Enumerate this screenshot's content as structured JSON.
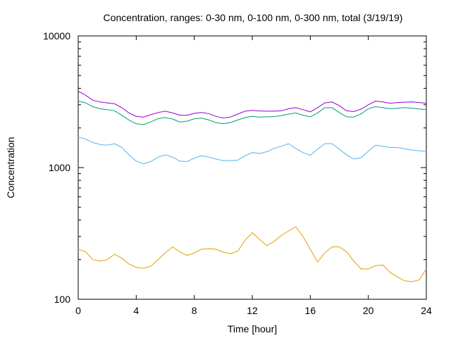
{
  "chart_data": {
    "type": "line",
    "title": "Concentration, ranges: 0-30 nm, 0-100 nm, 0-300 nm, total (3/19/19)",
    "xlabel": "Time [hour]",
    "ylabel": "Concentration",
    "xlim": [
      0,
      24
    ],
    "ylim": [
      100,
      10000
    ],
    "yscale": "log",
    "grid": false,
    "x_ticks": [
      0,
      4,
      8,
      12,
      16,
      20,
      24
    ],
    "x_tick_labels": [
      "0",
      "4",
      "8",
      "12",
      "16",
      "20",
      "24"
    ],
    "y_ticks": [
      100,
      1000,
      10000
    ],
    "y_tick_labels": [
      "100",
      "1000",
      "10000"
    ],
    "x": [
      0,
      0.5,
      1,
      1.5,
      2,
      2.5,
      3,
      3.5,
      4,
      4.5,
      5,
      5.5,
      6,
      6.5,
      7,
      7.5,
      8,
      8.5,
      9,
      9.5,
      10,
      10.5,
      11,
      11.5,
      12,
      12.5,
      13,
      13.5,
      14,
      14.5,
      15,
      15.5,
      16,
      16.5,
      17,
      17.5,
      18,
      18.5,
      19,
      19.5,
      20,
      20.5,
      21,
      21.5,
      22,
      22.5,
      23,
      23.5,
      24
    ],
    "series": [
      {
        "color": "#e69f00",
        "values": [
          240,
          230,
          200,
          195,
          200,
          220,
          205,
          185,
          175,
          172,
          178,
          200,
          225,
          250,
          230,
          215,
          225,
          240,
          242,
          240,
          228,
          222,
          232,
          280,
          320,
          285,
          255,
          275,
          305,
          330,
          355,
          300,
          240,
          192,
          225,
          250,
          250,
          230,
          195,
          170,
          170,
          180,
          182,
          160,
          148,
          138,
          136,
          140,
          170
        ]
      },
      {
        "color": "#56b4e9",
        "values": [
          1700,
          1650,
          1550,
          1500,
          1480,
          1520,
          1420,
          1250,
          1120,
          1070,
          1110,
          1200,
          1250,
          1200,
          1120,
          1110,
          1180,
          1230,
          1200,
          1160,
          1130,
          1130,
          1140,
          1230,
          1300,
          1280,
          1320,
          1400,
          1450,
          1520,
          1400,
          1300,
          1240,
          1380,
          1520,
          1520,
          1380,
          1250,
          1160,
          1190,
          1330,
          1480,
          1450,
          1420,
          1420,
          1390,
          1360,
          1340,
          1330
        ]
      },
      {
        "color": "#009e73",
        "values": [
          3200,
          3100,
          2900,
          2800,
          2750,
          2700,
          2500,
          2300,
          2150,
          2120,
          2220,
          2350,
          2400,
          2340,
          2220,
          2250,
          2350,
          2380,
          2300,
          2200,
          2150,
          2200,
          2300,
          2400,
          2450,
          2420,
          2430,
          2440,
          2480,
          2550,
          2600,
          2500,
          2430,
          2600,
          2850,
          2850,
          2620,
          2430,
          2420,
          2560,
          2800,
          2900,
          2850,
          2800,
          2820,
          2860,
          2830,
          2790,
          2760
        ]
      },
      {
        "color": "#9400d3",
        "values": [
          3800,
          3550,
          3250,
          3150,
          3100,
          3050,
          2850,
          2600,
          2450,
          2420,
          2520,
          2620,
          2680,
          2600,
          2500,
          2500,
          2580,
          2620,
          2570,
          2450,
          2380,
          2420,
          2550,
          2680,
          2720,
          2690,
          2680,
          2680,
          2700,
          2800,
          2850,
          2750,
          2650,
          2850,
          3100,
          3150,
          2950,
          2700,
          2660,
          2780,
          3000,
          3200,
          3150,
          3080,
          3120,
          3140,
          3150,
          3120,
          3080
        ]
      }
    ]
  }
}
